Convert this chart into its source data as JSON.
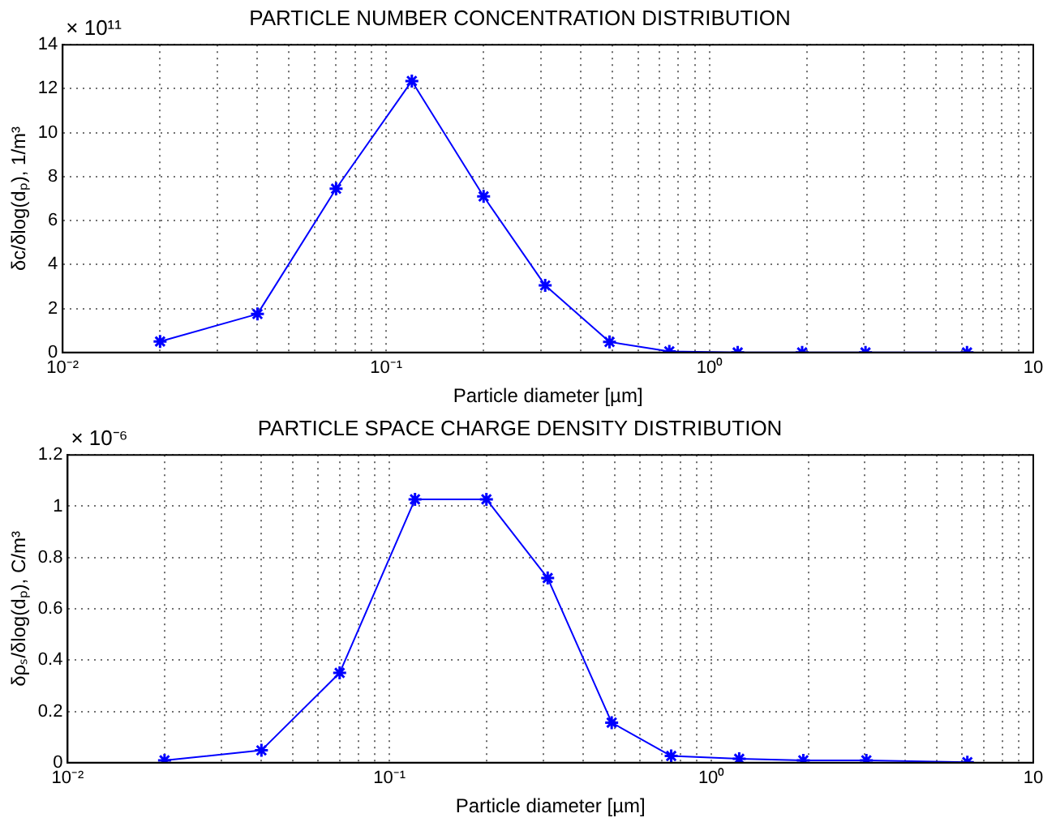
{
  "chart_data": [
    {
      "type": "line",
      "title": "PARTICLE NUMBER CONCENTRATION DISTRIBUTION",
      "xlabel": "Particle diameter [µm]",
      "ylabel": "δc/δlog(dₚ), 1/m³",
      "annotations": [
        "× 10¹¹"
      ],
      "x": [
        0.02,
        0.04,
        0.07,
        0.12,
        0.2,
        0.31,
        0.49,
        0.75,
        1.22,
        1.93,
        3.03,
        6.24
      ],
      "series": [
        {
          "color": "#0000ff",
          "values": [
            0.5,
            1.75,
            7.45,
            12.35,
            7.1,
            3.05,
            0.48,
            0.05,
            0,
            0,
            0,
            0
          ]
        }
      ],
      "log": "x",
      "xlim": [
        0.01,
        10
      ],
      "ylim": [
        0,
        14
      ],
      "yticks": [
        0,
        2,
        4,
        6,
        8,
        10,
        12,
        14
      ],
      "xticks": [
        {
          "value": 0.01,
          "label": "10⁻²"
        },
        {
          "value": 0.02,
          "label": null
        },
        {
          "value": 0.03,
          "label": null
        },
        {
          "value": 0.04,
          "label": null
        },
        {
          "value": 0.05,
          "label": null
        },
        {
          "value": 0.06,
          "label": null
        },
        {
          "value": 0.07,
          "label": null
        },
        {
          "value": 0.08,
          "label": null
        },
        {
          "value": 0.09,
          "label": null
        },
        {
          "value": 0.1,
          "label": "10⁻¹"
        },
        {
          "value": 0.2,
          "label": null
        },
        {
          "value": 0.3,
          "label": null
        },
        {
          "value": 0.4,
          "label": null
        },
        {
          "value": 0.5,
          "label": null
        },
        {
          "value": 0.6,
          "label": null
        },
        {
          "value": 0.7,
          "label": null
        },
        {
          "value": 0.8,
          "label": null
        },
        {
          "value": 0.9,
          "label": null
        },
        {
          "value": 1,
          "label": "10⁰"
        },
        {
          "value": 2,
          "label": null
        },
        {
          "value": 3,
          "label": null
        },
        {
          "value": 4,
          "label": null
        },
        {
          "value": 5,
          "label": null
        },
        {
          "value": 6,
          "label": null
        },
        {
          "value": 7,
          "label": null
        },
        {
          "value": 8,
          "label": null
        },
        {
          "value": 9,
          "label": null
        },
        {
          "value": 10,
          "label": "10"
        }
      ],
      "grid": true,
      "marker": "cross",
      "line_style": "solid"
    },
    {
      "type": "line",
      "title": "PARTICLE SPACE CHARGE DENSITY DISTRIBUTION",
      "xlabel": "Particle diameter [µm]",
      "ylabel": "δρₛ/δlog(dₚ), C/m³",
      "annotations": [
        "× 10⁻⁶"
      ],
      "x": [
        0.02,
        0.04,
        0.07,
        0.12,
        0.2,
        0.31,
        0.49,
        0.75,
        1.22,
        1.93,
        3.03,
        6.24
      ],
      "series": [
        {
          "color": "#0000ff",
          "values": [
            0.009,
            0.048,
            0.35,
            1.027,
            1.027,
            0.72,
            0.156,
            0.026,
            0.015,
            0.009,
            0.009,
            0.002
          ]
        }
      ],
      "log": "x",
      "xlim": [
        0.01,
        10
      ],
      "ylim": [
        0,
        1.2
      ],
      "yticks": [
        0,
        0.2,
        0.4,
        0.6,
        0.8,
        1,
        1.2
      ],
      "xticks": [
        {
          "value": 0.01,
          "label": "10⁻²"
        },
        {
          "value": 0.02,
          "label": null
        },
        {
          "value": 0.03,
          "label": null
        },
        {
          "value": 0.04,
          "label": null
        },
        {
          "value": 0.05,
          "label": null
        },
        {
          "value": 0.06,
          "label": null
        },
        {
          "value": 0.07,
          "label": null
        },
        {
          "value": 0.08,
          "label": null
        },
        {
          "value": 0.09,
          "label": null
        },
        {
          "value": 0.1,
          "label": "10⁻¹"
        },
        {
          "value": 0.2,
          "label": null
        },
        {
          "value": 0.3,
          "label": null
        },
        {
          "value": 0.4,
          "label": null
        },
        {
          "value": 0.5,
          "label": null
        },
        {
          "value": 0.6,
          "label": null
        },
        {
          "value": 0.7,
          "label": null
        },
        {
          "value": 0.8,
          "label": null
        },
        {
          "value": 0.9,
          "label": null
        },
        {
          "value": 1,
          "label": "10⁰"
        },
        {
          "value": 2,
          "label": null
        },
        {
          "value": 3,
          "label": null
        },
        {
          "value": 4,
          "label": null
        },
        {
          "value": 5,
          "label": null
        },
        {
          "value": 6,
          "label": null
        },
        {
          "value": 7,
          "label": null
        },
        {
          "value": 8,
          "label": null
        },
        {
          "value": 9,
          "label": null
        },
        {
          "value": 10,
          "label": "10"
        }
      ],
      "grid": true,
      "marker": "cross",
      "line_style": "solid"
    }
  ]
}
